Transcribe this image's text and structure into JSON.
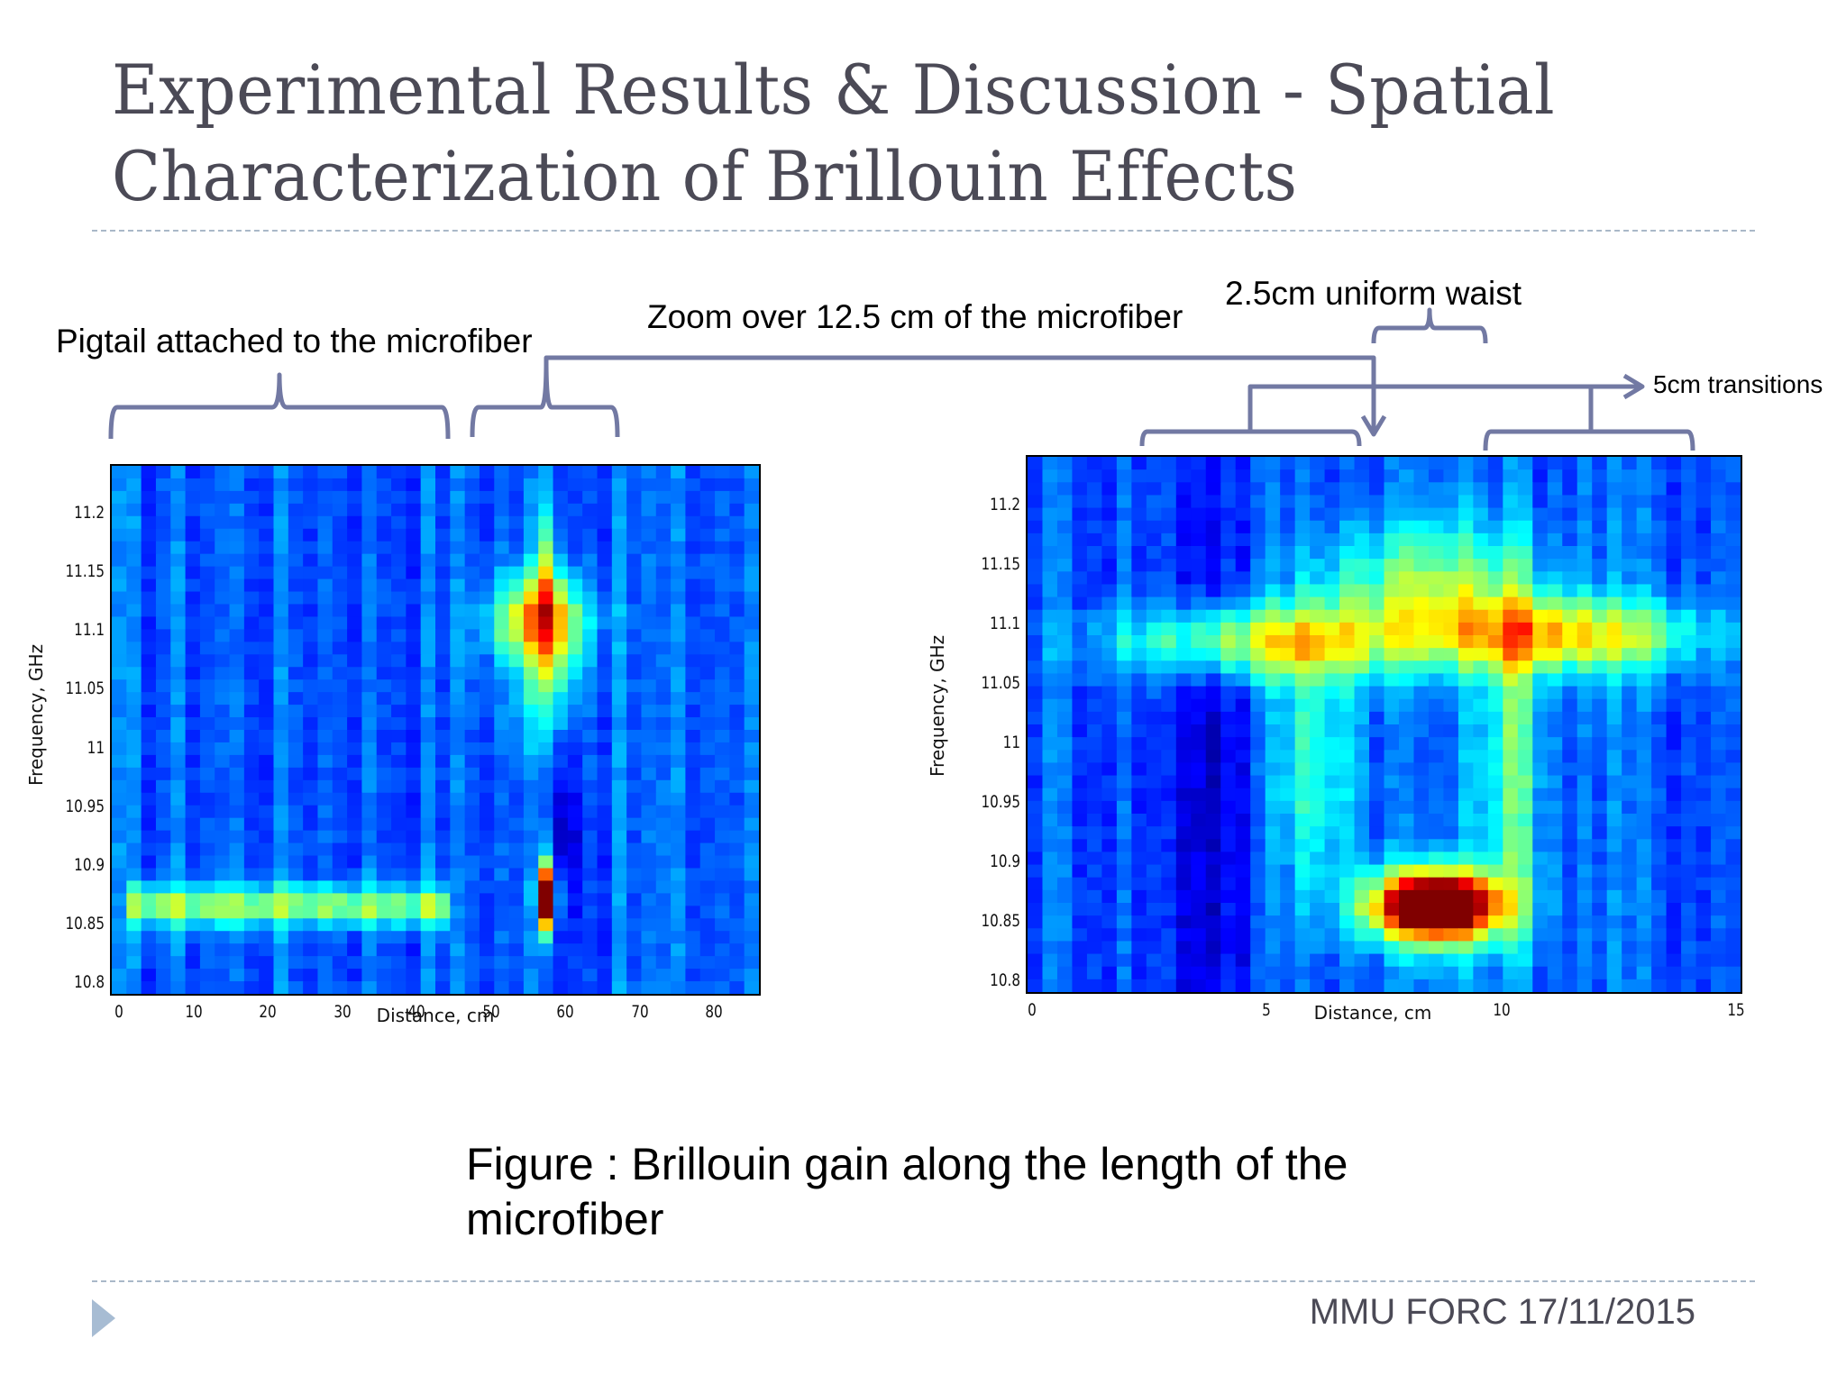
{
  "slide": {
    "title_line1": "Experimental Results & Discussion - Spatial",
    "title_line2": "Characterization of Brillouin Effects",
    "caption_line1": "Figure : Brillouin gain along the length of the",
    "caption_line2": "microfiber",
    "footer": "MMU FORC 17/11/2015",
    "footer_icon": "triangle-bullet-icon",
    "colors": {
      "title": "#4b4a56",
      "divider": "#a9b8c8",
      "bracket": "#7279a3",
      "footer_triangle": "#a7bcd3"
    }
  },
  "annotations": {
    "pigtail": "Pigtail attached to the microfiber",
    "zoom": "Zoom over 12.5 cm of the microfiber",
    "waist": "2.5cm uniform waist",
    "transitions": "5cm transitions"
  },
  "chart_data": [
    {
      "type": "heatmap",
      "title": "",
      "xlabel": "Distance, cm",
      "ylabel": "Frequency, GHz",
      "xlim": [
        -1,
        86
      ],
      "ylim": [
        10.79,
        11.24
      ],
      "x_ticks": [
        "0",
        "10",
        "20",
        "30",
        "40",
        "50",
        "60",
        "70",
        "80"
      ],
      "y_ticks": [
        "11.2",
        "11.15",
        "11.1",
        "11.05",
        "11",
        "10.95",
        "10.9",
        "10.85",
        "10.8"
      ],
      "colormap": "jet",
      "grid": false,
      "features": [
        {
          "desc": "pigtail Brillouin band",
          "x_range": [
            0,
            45
          ],
          "y": 10.865,
          "intensity": 0.45
        },
        {
          "desc": "microfiber peak band",
          "x_range": [
            51,
            62
          ],
          "y": 11.11,
          "intensity": 0.6
        },
        {
          "desc": "narrow hot spot",
          "x": 57,
          "y": 10.87,
          "intensity": 1.0
        }
      ],
      "cols": 44,
      "rows": 42,
      "blobs": [
        {
          "x": 0.0,
          "y": 10.865,
          "sx": 45,
          "sy": 0.012,
          "a": 0.32,
          "kind": "band"
        },
        {
          "x": 56.5,
          "y": 11.11,
          "sx": 4.5,
          "sy": 0.025,
          "a": 0.45
        },
        {
          "x": 57.5,
          "y": 11.15,
          "sx": 1.2,
          "sy": 0.04,
          "a": 0.3
        },
        {
          "x": 57.5,
          "y": 11.06,
          "sx": 3,
          "sy": 0.04,
          "a": 0.25
        },
        {
          "x": 57.5,
          "y": 10.872,
          "sx": 0.9,
          "sy": 0.02,
          "a": 0.95
        },
        {
          "x": 60,
          "y": 10.92,
          "sx": 1.5,
          "sy": 0.05,
          "a": -0.12
        }
      ]
    },
    {
      "type": "heatmap",
      "title": "",
      "xlabel": "Distance, cm",
      "ylabel": "Frequency, GHz",
      "xlim": [
        -0.1,
        15.1
      ],
      "ylim": [
        10.79,
        11.24
      ],
      "x_ticks": [
        "0",
        "5",
        "10",
        "15"
      ],
      "y_ticks": [
        "11.2",
        "11.15",
        "11.1",
        "11.05",
        "11",
        "10.95",
        "10.9",
        "10.85",
        "10.8"
      ],
      "colormap": "jet",
      "grid": false,
      "features": [
        {
          "desc": "transition band",
          "x_range": [
            2.5,
            13.5
          ],
          "y": 11.09,
          "intensity": 0.45
        },
        {
          "desc": "waist vertical stripes",
          "x_range": [
            5.5,
            10.5
          ],
          "y_range": [
            10.9,
            11.15
          ],
          "intensity": 0.35
        },
        {
          "desc": "waist hot spot",
          "x": 8.6,
          "y": 10.86,
          "intensity": 1.0
        }
      ],
      "cols": 48,
      "rows": 42,
      "blobs": [
        {
          "x": 5.0,
          "y": 11.085,
          "sx": 2.2,
          "sy": 0.022,
          "a": 0.4
        },
        {
          "x": 11.5,
          "y": 11.09,
          "sx": 1.9,
          "sy": 0.022,
          "a": 0.42
        },
        {
          "x": 8.5,
          "y": 11.13,
          "sx": 1.6,
          "sy": 0.04,
          "a": 0.3
        },
        {
          "x": 6.0,
          "y": 10.98,
          "sx": 0.7,
          "sy": 0.08,
          "a": 0.22
        },
        {
          "x": 10.2,
          "y": 10.98,
          "sx": 0.5,
          "sy": 0.1,
          "a": 0.26
        },
        {
          "x": 8.6,
          "y": 10.863,
          "sx": 0.85,
          "sy": 0.017,
          "a": 0.95
        },
        {
          "x": 8.6,
          "y": 10.86,
          "sx": 1.2,
          "sy": 0.03,
          "a": 0.3
        },
        {
          "x": 3.8,
          "y": 10.95,
          "sx": 0.9,
          "sy": 0.2,
          "a": -0.12
        }
      ]
    }
  ]
}
